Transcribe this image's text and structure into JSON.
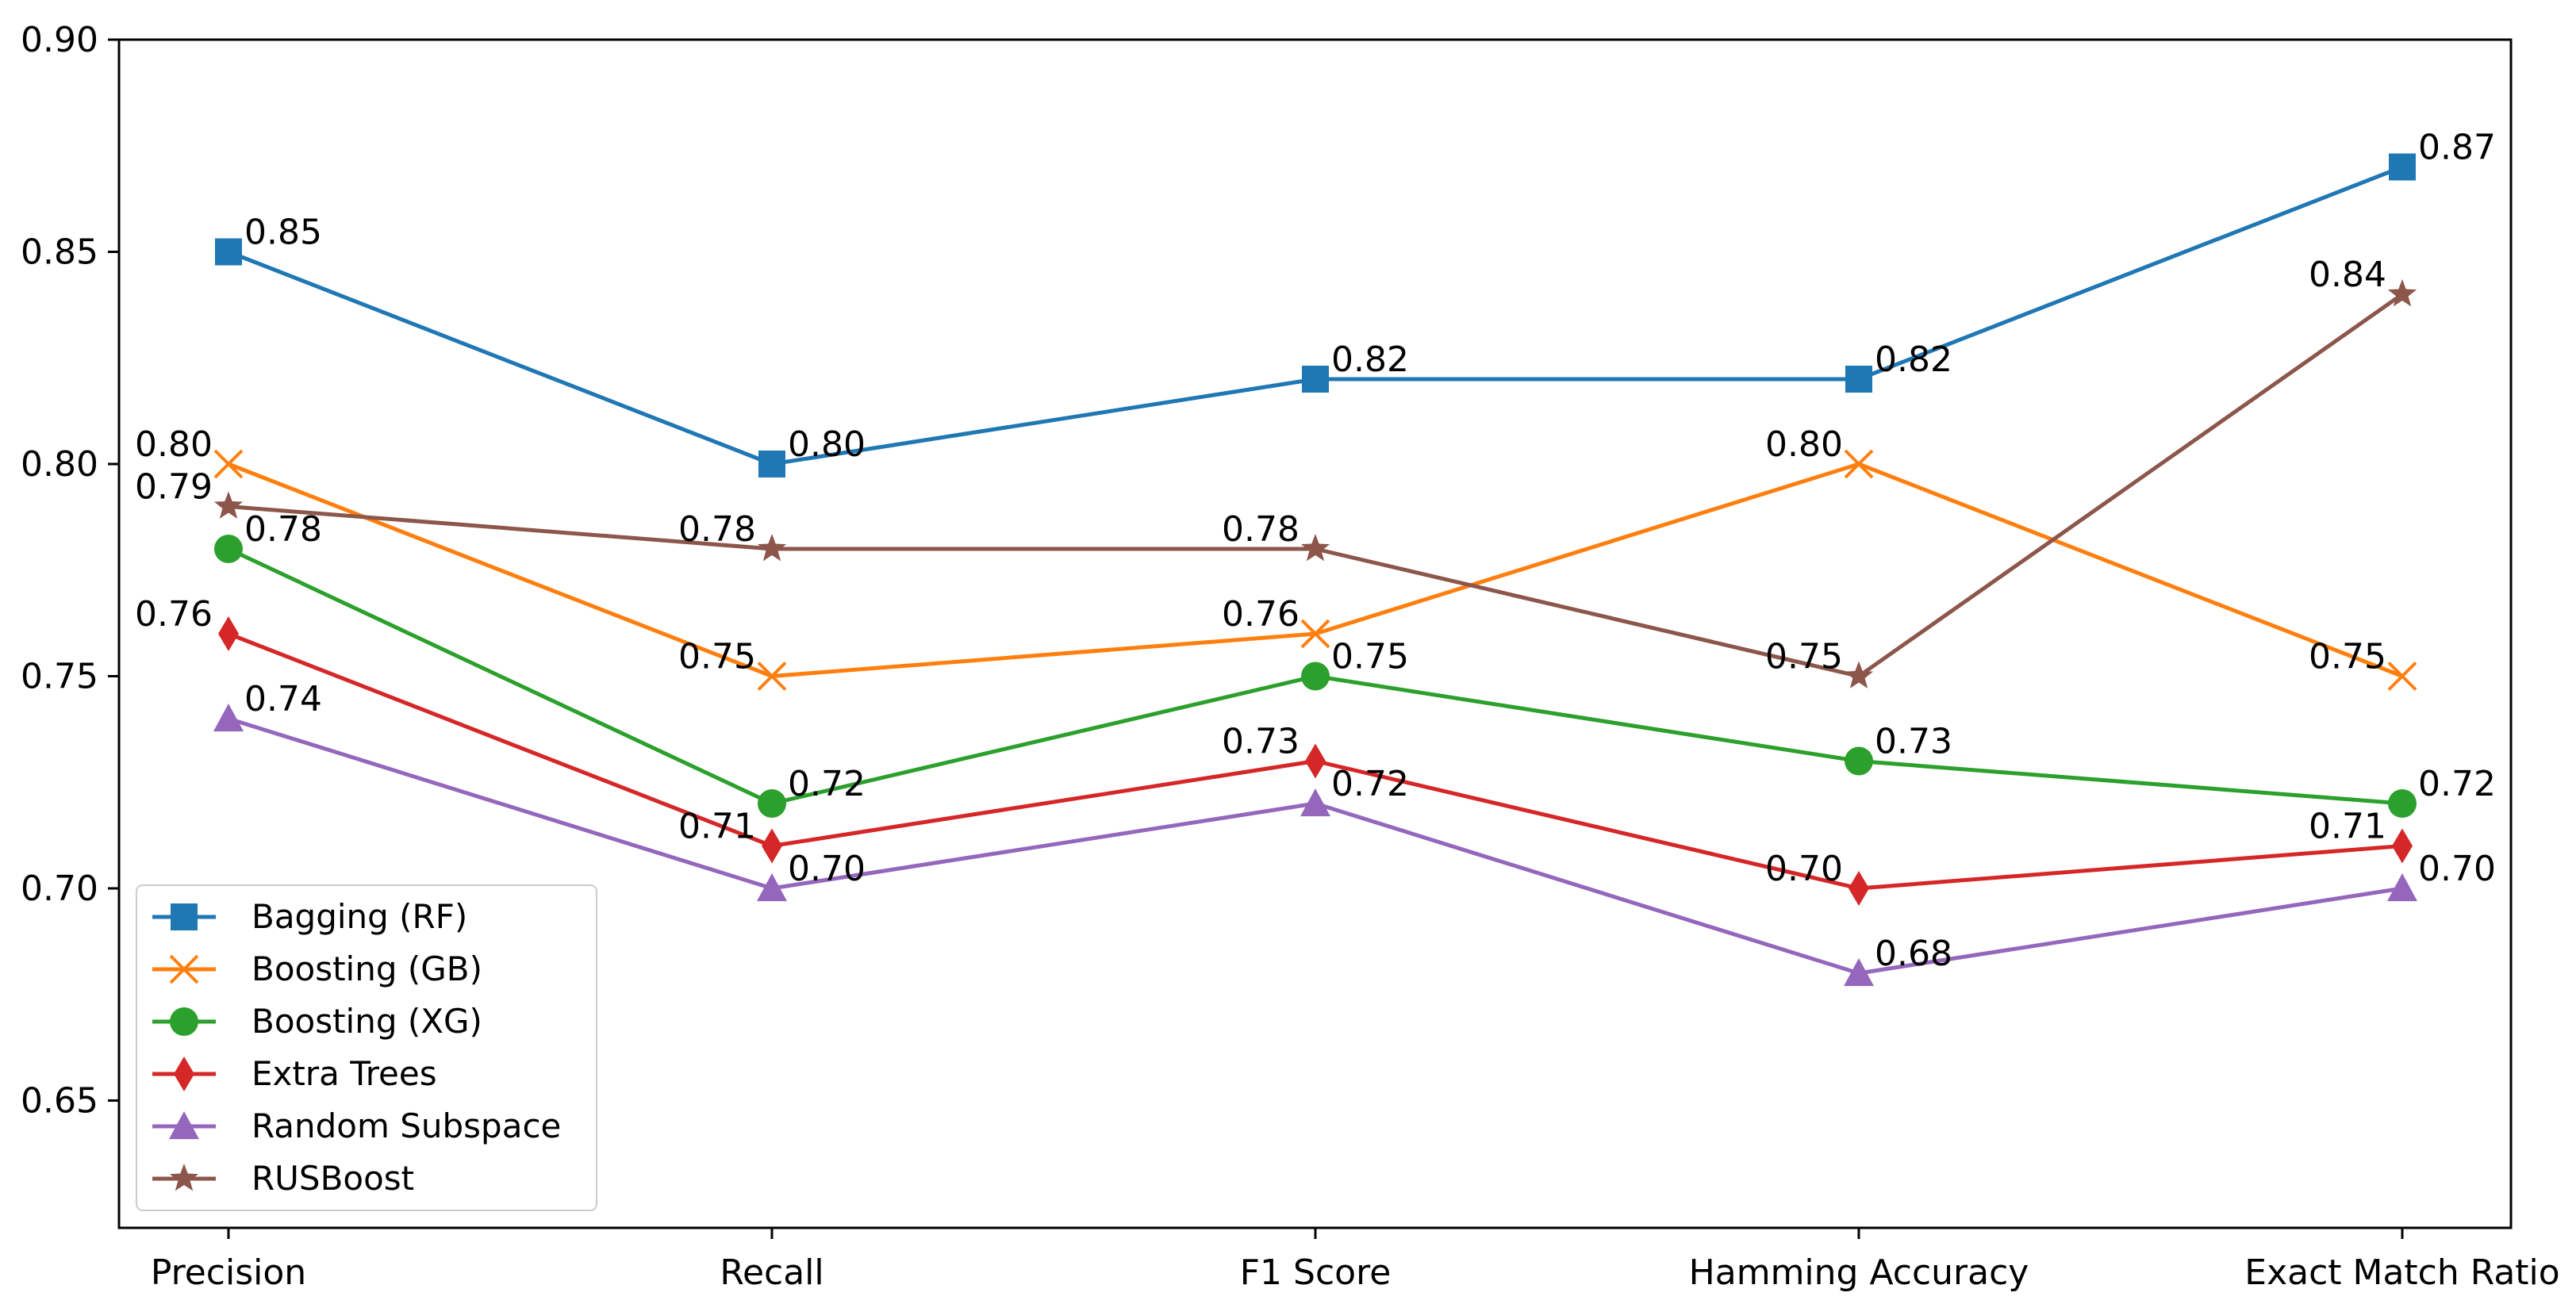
{
  "chart_data": {
    "type": "line",
    "title": "",
    "xlabel": "",
    "ylabel": "",
    "categories": [
      "Precision",
      "Recall",
      "F1 Score",
      "Hamming Accuracy",
      "Exact Match Ratio"
    ],
    "ylim": [
      0.62,
      0.9
    ],
    "yticks": [
      "0.65",
      "0.70",
      "0.75",
      "0.80",
      "0.85",
      "0.90"
    ],
    "grid": false,
    "legend_position": "bottom-left",
    "series": [
      {
        "name": "Bagging (RF)",
        "color": "#1f77b4",
        "marker": "square",
        "values": [
          0.85,
          0.8,
          0.82,
          0.82,
          0.87
        ],
        "labels": [
          "0.85",
          "0.80",
          "0.82",
          "0.82",
          "0.87"
        ],
        "label_side": [
          "right",
          "right",
          "right",
          "right",
          "right"
        ]
      },
      {
        "name": "Boosting (GB)",
        "color": "#ff7f0e",
        "marker": "x",
        "values": [
          0.8,
          0.75,
          0.76,
          0.8,
          0.75
        ],
        "labels": [
          "0.80",
          "0.75",
          "0.76",
          "0.80",
          "0.75"
        ],
        "label_side": [
          "left",
          "left",
          "left",
          "left",
          "left"
        ]
      },
      {
        "name": "Boosting (XG)",
        "color": "#2ca02c",
        "marker": "circle",
        "values": [
          0.78,
          0.72,
          0.75,
          0.73,
          0.72
        ],
        "labels": [
          "0.78",
          "0.72",
          "0.75",
          "0.73",
          "0.72"
        ],
        "label_side": [
          "right",
          "right",
          "right",
          "right",
          "right"
        ]
      },
      {
        "name": "Extra Trees",
        "color": "#d62728",
        "marker": "diamond",
        "values": [
          0.76,
          0.71,
          0.73,
          0.7,
          0.71
        ],
        "labels": [
          "0.76",
          "0.71",
          "0.73",
          "0.70",
          "0.71"
        ],
        "label_side": [
          "left",
          "left",
          "left",
          "left",
          "left"
        ]
      },
      {
        "name": "Random Subspace",
        "color": "#9467bd",
        "marker": "triangle",
        "values": [
          0.74,
          0.7,
          0.72,
          0.68,
          0.7
        ],
        "labels": [
          "0.74",
          "0.70",
          "0.72",
          "0.68",
          "0.70"
        ],
        "label_side": [
          "right",
          "right",
          "right",
          "right",
          "right"
        ]
      },
      {
        "name": "RUSBoost",
        "color": "#8c564b",
        "marker": "star",
        "values": [
          0.79,
          0.78,
          0.78,
          0.75,
          0.84
        ],
        "labels": [
          "0.79",
          "0.78",
          "0.78",
          "0.75",
          "0.84"
        ],
        "label_side": [
          "left",
          "left",
          "left",
          "left",
          "left"
        ]
      }
    ]
  }
}
